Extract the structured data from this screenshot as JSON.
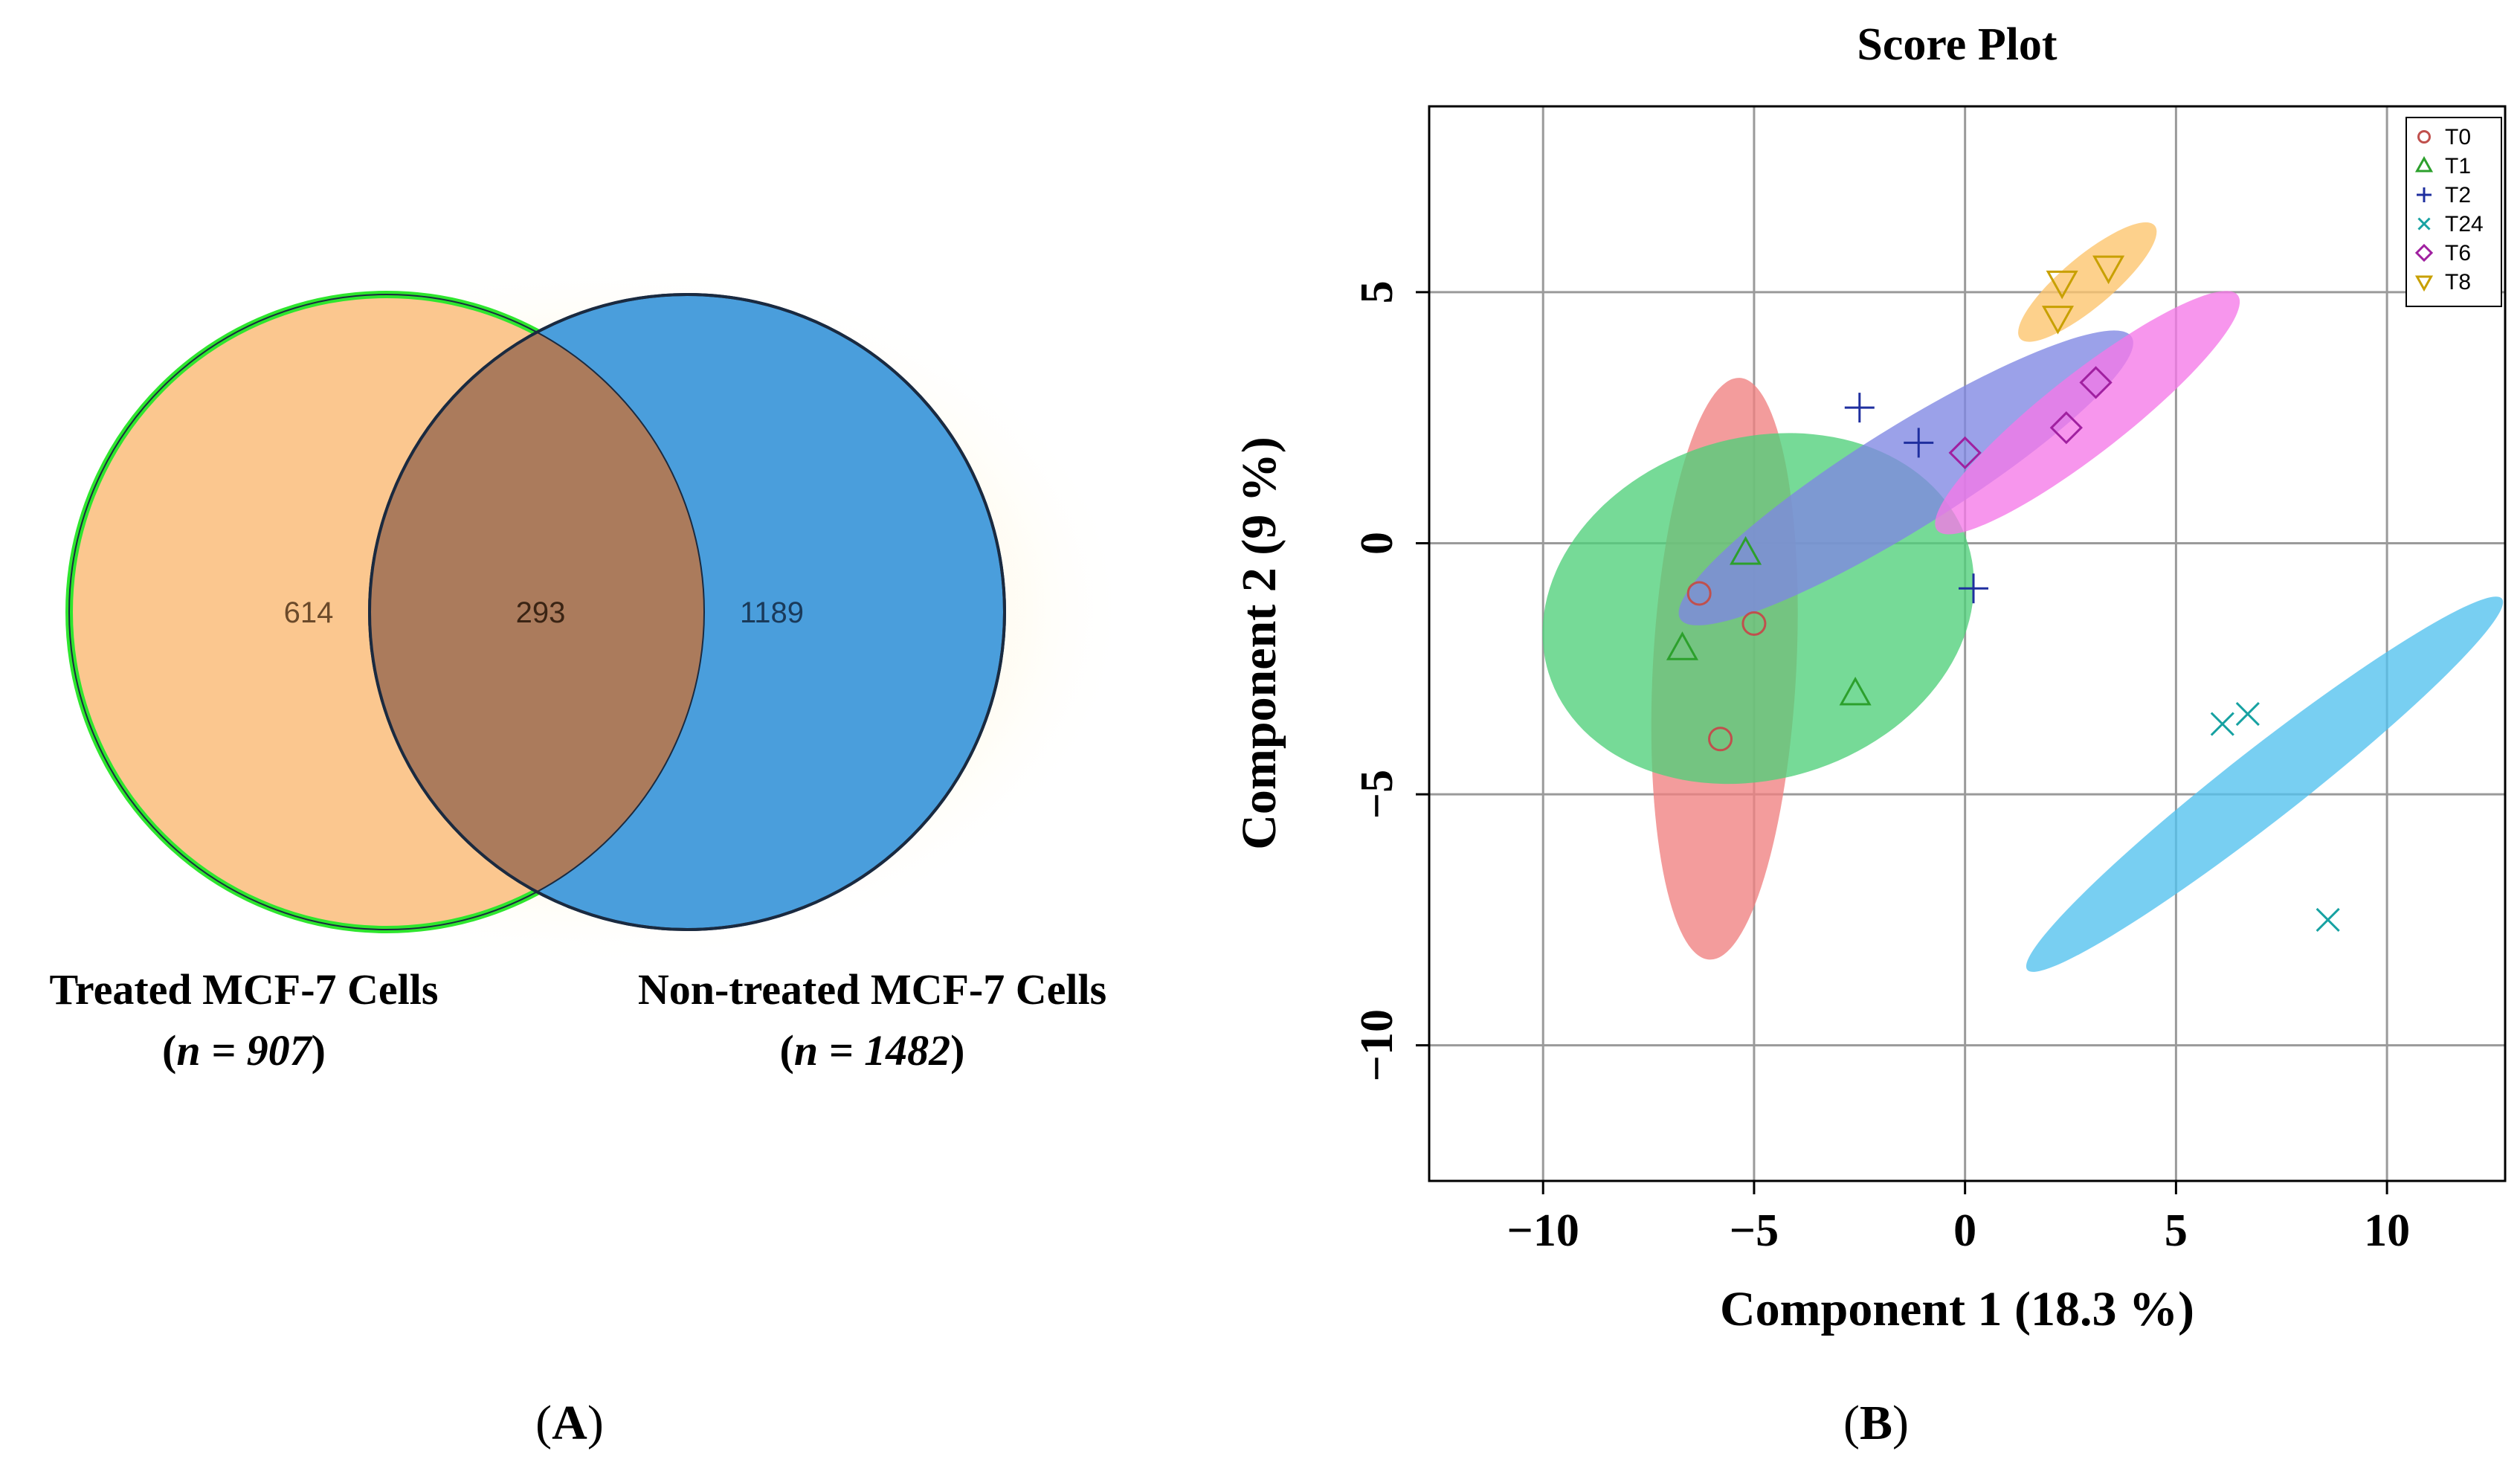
{
  "chart_data": [
    {
      "type": "venn",
      "panel_label": "A",
      "sets": [
        {
          "name": "Treated MCF-7 Cells",
          "n_label": "n = 907",
          "n_prefix": "n",
          "n_value": "907",
          "total": 907,
          "color": "#fbc78f",
          "outline": "#2ee62e"
        },
        {
          "name": "Non-treated MCF-7 Cells",
          "n_label": "n = 1482",
          "n_prefix": "n",
          "n_value": "1482",
          "total": 1482,
          "color": "#4a9edc",
          "outline": "#1a2a40"
        }
      ],
      "regions": [
        {
          "label": "614",
          "value": 614,
          "sets": [
            "Treated MCF-7 Cells"
          ]
        },
        {
          "label": "293",
          "value": 293,
          "sets": [
            "Treated MCF-7 Cells",
            "Non-treated MCF-7 Cells"
          ]
        },
        {
          "label": "1189",
          "value": 1189,
          "sets": [
            "Non-treated MCF-7 Cells"
          ]
        }
      ],
      "overlap_color": "#ab7b5c"
    },
    {
      "type": "scatter",
      "panel_label": "B",
      "title": "Score Plot",
      "xlabel": "Component 1 (18.3 %)",
      "ylabel": "Component 2 (9 %)",
      "xlim": [
        -12.7,
        12.8
      ],
      "ylim": [
        -12.7,
        8.7
      ],
      "xticks": [
        -10,
        -5,
        0,
        5,
        10
      ],
      "yticks": [
        -10,
        -5,
        0,
        5
      ],
      "xtick_labels": [
        "−10",
        "−5",
        "0",
        "5",
        "10"
      ],
      "ytick_labels": [
        "−10",
        "−5",
        "0",
        "5"
      ],
      "grid": true,
      "legend_position": "top-right",
      "series": [
        {
          "name": "T0",
          "marker": "circle",
          "color": "#c0504d",
          "fill": "#f08080",
          "points": [
            {
              "x": -6.3,
              "y": -1.0
            },
            {
              "x": -5.0,
              "y": -1.6
            },
            {
              "x": -5.8,
              "y": -3.9
            }
          ],
          "ellipse": {
            "cx": -5.7,
            "cy": -2.5,
            "rx": 1.7,
            "ry": 5.8,
            "angle": 3
          }
        },
        {
          "name": "T1",
          "marker": "triangle",
          "color": "#2ca02c",
          "fill": "#4fcf7a",
          "points": [
            {
              "x": -6.7,
              "y": -2.1
            },
            {
              "x": -5.2,
              "y": -0.2
            },
            {
              "x": -2.6,
              "y": -3.0
            }
          ],
          "ellipse": {
            "cx": -4.9,
            "cy": -1.3,
            "rx": 5.2,
            "ry": 3.4,
            "angle": -17
          }
        },
        {
          "name": "T2",
          "marker": "plus",
          "color": "#1f2f9f",
          "fill": "#7f87e3",
          "points": [
            {
              "x": -2.5,
              "y": 2.7
            },
            {
              "x": -1.1,
              "y": 2.0
            },
            {
              "x": 0.2,
              "y": -0.9
            }
          ],
          "ellipse": {
            "cx": -1.4,
            "cy": 1.3,
            "rx": 1.2,
            "ry": 5.3,
            "angle": 58
          }
        },
        {
          "name": "T24",
          "marker": "x",
          "color": "#17a2a2",
          "fill": "#52c2ee",
          "points": [
            {
              "x": 6.1,
              "y": -3.6
            },
            {
              "x": 6.7,
              "y": -3.4
            },
            {
              "x": 8.6,
              "y": -7.5
            }
          ],
          "ellipse": {
            "cx": 7.1,
            "cy": -4.8,
            "rx": 0.85,
            "ry": 6.0,
            "angle": 52
          }
        },
        {
          "name": "T6",
          "marker": "diamond",
          "color": "#a020a0",
          "fill": "#f578e8",
          "points": [
            {
              "x": 0.0,
              "y": 1.8
            },
            {
              "x": 2.4,
              "y": 2.3
            },
            {
              "x": 3.1,
              "y": 3.2
            }
          ],
          "ellipse": {
            "cx": 2.9,
            "cy": 2.6,
            "rx": 0.95,
            "ry": 3.8,
            "angle": 52
          }
        },
        {
          "name": "T8",
          "marker": "triangle-down",
          "color": "#c8a000",
          "fill": "#fcc46c",
          "points": [
            {
              "x": 2.3,
              "y": 5.2
            },
            {
              "x": 3.4,
              "y": 5.5
            },
            {
              "x": 2.2,
              "y": 4.5
            }
          ],
          "ellipse": {
            "cx": 2.9,
            "cy": 5.2,
            "rx": 0.6,
            "ry": 1.75,
            "angle": 50
          }
        }
      ]
    }
  ]
}
